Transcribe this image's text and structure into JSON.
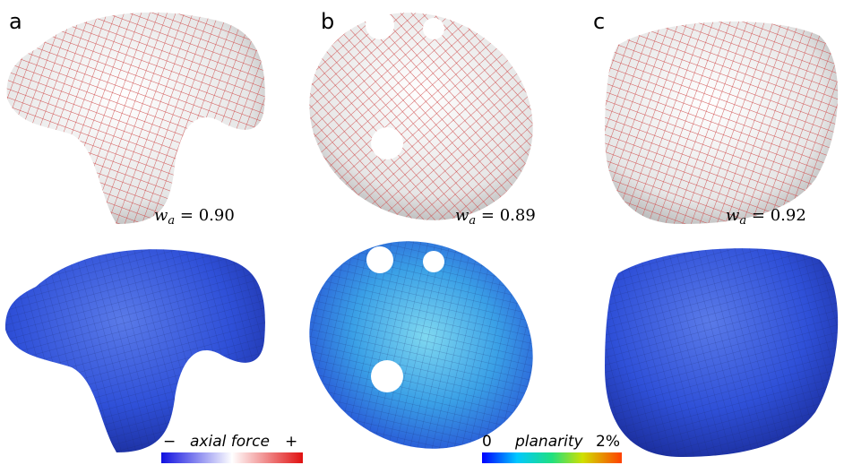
{
  "panels": [
    {
      "label": "a",
      "weight": {
        "symbol": "w",
        "sub": "a",
        "rest": " = 0.90"
      }
    },
    {
      "label": "b",
      "weight": {
        "symbol": "w",
        "sub": "a",
        "rest": " = 0.89"
      }
    },
    {
      "label": "c",
      "weight": {
        "symbol": "w",
        "sub": "a",
        "rest": " = 0.92"
      }
    }
  ],
  "legends": {
    "axial_force": {
      "min": "−",
      "label": "axial force",
      "max": "+"
    },
    "planarity": {
      "min": "0",
      "label": "planarity",
      "max": "2%"
    }
  }
}
